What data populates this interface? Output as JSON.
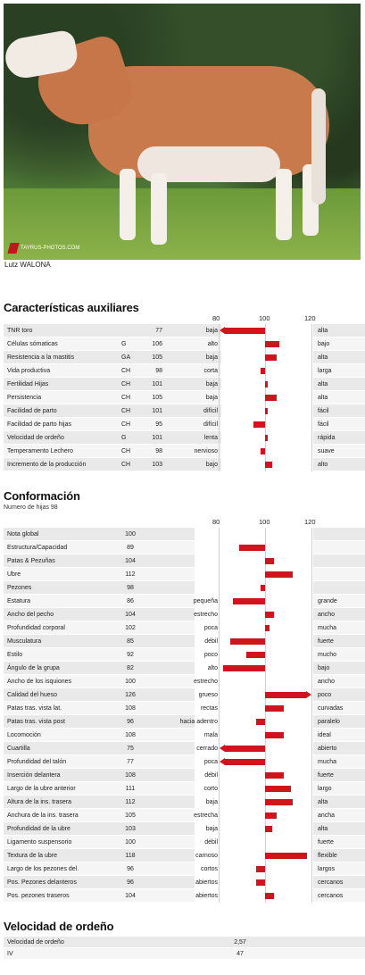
{
  "photo": {
    "logo_text": "ΤΑΥRUS-PHOTOS.COM",
    "caption": "Lutz WALONA"
  },
  "aux": {
    "title": "Características auxiliares",
    "scale": [
      "80",
      "100",
      "120"
    ],
    "rows": [
      {
        "name": "TNR toro",
        "cat": "",
        "value": 77,
        "low": "baja",
        "high": "alta"
      },
      {
        "name": "Células sómaticas",
        "cat": "G",
        "value": 106,
        "low": "alto",
        "high": "bajo"
      },
      {
        "name": "Resistencia a la mastitis",
        "cat": "GA",
        "value": 105,
        "low": "baja",
        "high": "alta"
      },
      {
        "name": "Vida productiva",
        "cat": "CH",
        "value": 98,
        "low": "corta",
        "high": "larga"
      },
      {
        "name": "Fertilidad Hijas",
        "cat": "CH",
        "value": 101,
        "low": "baja",
        "high": "alta"
      },
      {
        "name": "Persistencia",
        "cat": "CH",
        "value": 105,
        "low": "baja",
        "high": "alta"
      },
      {
        "name": "Facilidad de parto",
        "cat": "CH",
        "value": 101,
        "low": "difícil",
        "high": "fácil"
      },
      {
        "name": "Facilidad de parto hijas",
        "cat": "CH",
        "value": 95,
        "low": "difícil",
        "high": "fácil"
      },
      {
        "name": "Velocidad de ordeño",
        "cat": "G",
        "value": 101,
        "low": "lenta",
        "high": "rápida"
      },
      {
        "name": "Temperamento Lechero",
        "cat": "CH",
        "value": 98,
        "low": "nervioso",
        "high": "suave"
      },
      {
        "name": "Incremento de la producción",
        "cat": "CH",
        "value": 103,
        "low": "bajo",
        "high": "alto"
      }
    ]
  },
  "conf": {
    "title": "Conformación",
    "subtitle": "Numero de hijas 98",
    "scale": [
      "80",
      "100",
      "120"
    ],
    "rows": [
      {
        "name": "Nota global",
        "value": 100,
        "low": "",
        "high": ""
      },
      {
        "name": "Estructura/Capacidad",
        "value": 89,
        "low": "",
        "high": ""
      },
      {
        "name": "Patas & Pezuñas",
        "value": 104,
        "low": "",
        "high": ""
      },
      {
        "name": "Ubre",
        "value": 112,
        "low": "",
        "high": ""
      },
      {
        "name": "Pezones",
        "value": 98,
        "low": "",
        "high": ""
      },
      {
        "name": "Estatura",
        "value": 86,
        "low": "pequeña",
        "high": "grande"
      },
      {
        "name": "Ancho del pecho",
        "value": 104,
        "low": "estrecho",
        "high": "ancho"
      },
      {
        "name": "Profundidad corporal",
        "value": 102,
        "low": "poca",
        "high": "mucha"
      },
      {
        "name": "Musculatura",
        "value": 85,
        "low": "débil",
        "high": "fuerte"
      },
      {
        "name": "Estilo",
        "value": 92,
        "low": "poco",
        "high": "mucho"
      },
      {
        "name": "Ángulo de la grupa",
        "value": 82,
        "low": "alto",
        "high": "bajo"
      },
      {
        "name": "Ancho de los isquiones",
        "value": 100,
        "low": "estrecho",
        "high": "ancho"
      },
      {
        "name": "Calidad del hueso",
        "value": 126,
        "low": "grueso",
        "high": "poco"
      },
      {
        "name": "Patas tras. vista lat.",
        "value": 108,
        "low": "rectas",
        "high": "curvadas"
      },
      {
        "name": "Patas tras. vista post",
        "value": 96,
        "low": "hacia adentro",
        "high": "paralelo"
      },
      {
        "name": "Locomoción",
        "value": 108,
        "low": "mala",
        "high": "ideal"
      },
      {
        "name": "Cuartilla",
        "value": 75,
        "low": "cerrado",
        "high": "abierto"
      },
      {
        "name": "Profundidad del talón",
        "value": 77,
        "low": "poca",
        "high": "mucha"
      },
      {
        "name": "Inserción delantera",
        "value": 108,
        "low": "débil",
        "high": "fuerte"
      },
      {
        "name": "Largo de la ubre anterior",
        "value": 111,
        "low": "corto",
        "high": "largo"
      },
      {
        "name": "Altura de la ins. trasera",
        "value": 112,
        "low": "baja",
        "high": "alta"
      },
      {
        "name": "Anchura de la ins. trasera",
        "value": 105,
        "low": "estrecha",
        "high": "ancha"
      },
      {
        "name": "Profundidad de la ubre",
        "value": 103,
        "low": "baja",
        "high": "alta"
      },
      {
        "name": "Ligamento suspensorio",
        "value": 100,
        "low": "débil",
        "high": "fuerte"
      },
      {
        "name": "Textura de la ubre",
        "value": 118,
        "low": "carnoso",
        "high": "flexible"
      },
      {
        "name": "Largo de los pezones del.",
        "value": 96,
        "low": "cortos",
        "high": "largos"
      },
      {
        "name": "Pos. Pezones delanteros",
        "value": 96,
        "low": "abiertos",
        "high": "cercanos"
      },
      {
        "name": "Pos. pezones traseros",
        "value": 104,
        "low": "abiertos",
        "high": "cercanos"
      }
    ]
  },
  "milk": {
    "title": "Velocidad de ordeño",
    "rows": [
      {
        "name": "Velocidad de ordeño",
        "value": "2,57"
      },
      {
        "name": "IV",
        "value": "47"
      }
    ]
  },
  "colors": {
    "bar": "#d0141e"
  }
}
